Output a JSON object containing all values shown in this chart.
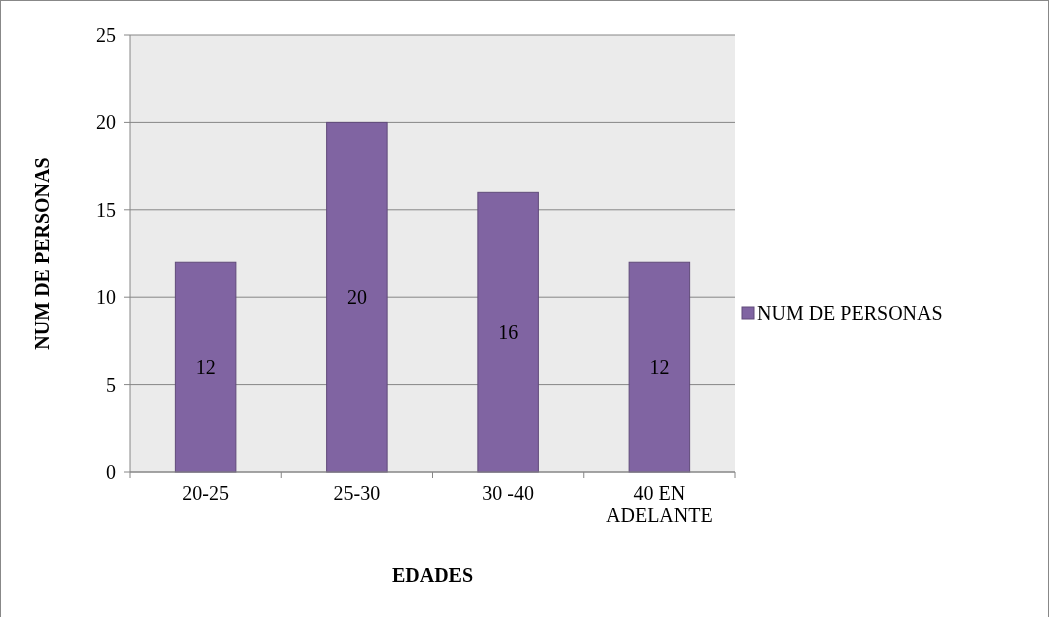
{
  "chart_data": {
    "type": "bar",
    "xlabel": "EDADES",
    "ylabel": "NUM DE PERSONAS",
    "categories": [
      "20-25",
      "25-30",
      "30 -40",
      "40 EN ADELANTE"
    ],
    "series": [
      {
        "name": "NUM DE PERSONAS",
        "color": "#8064a2",
        "values": [
          12,
          20,
          16,
          12
        ]
      }
    ],
    "ylim": [
      0,
      25
    ],
    "yticks": [
      0,
      5,
      10,
      15,
      20,
      25
    ],
    "grid": "y",
    "legend": "right",
    "data_labels": true
  }
}
